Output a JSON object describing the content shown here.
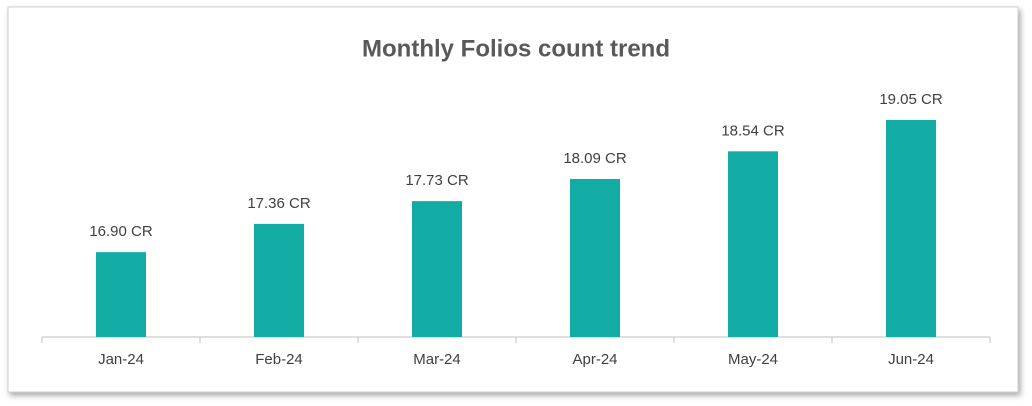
{
  "chart_data": {
    "type": "bar",
    "title": "Monthly Folios count trend",
    "categories": [
      "Jan-24",
      "Feb-24",
      "Mar-24",
      "Apr-24",
      "May-24",
      "Jun-24"
    ],
    "values": [
      16.9,
      17.36,
      17.73,
      18.09,
      18.54,
      19.05
    ],
    "value_labels": [
      "16.90 CR",
      "17.36 CR",
      "17.73 CR",
      "18.09 CR",
      "18.54 CR",
      "19.05 CR"
    ],
    "color": "#12aca4",
    "ylim": [
      15.52,
      19.7
    ]
  }
}
